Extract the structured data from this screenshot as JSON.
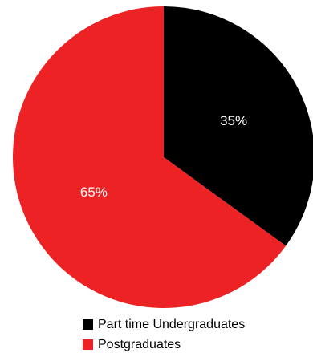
{
  "chart_data": {
    "type": "pie",
    "title": "",
    "legend_position": "bottom",
    "slices": [
      {
        "name": "Part time Undergraduates",
        "value": 35,
        "label": "35%",
        "color": "#000000"
      },
      {
        "name": "Postgraduates",
        "value": 65,
        "label": "65%",
        "color": "#ed2224"
      }
    ]
  }
}
